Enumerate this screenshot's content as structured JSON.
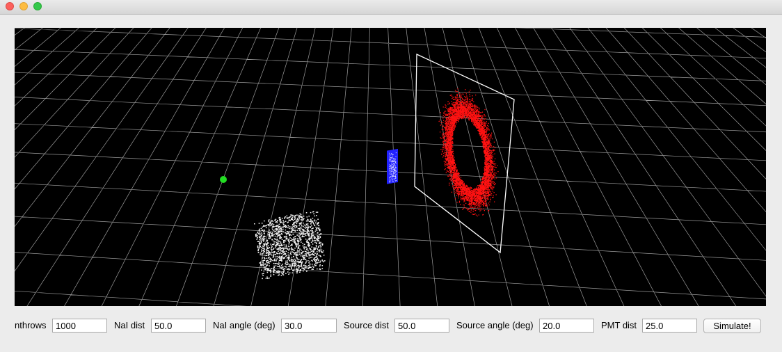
{
  "window": {
    "controls": {
      "close": "close-icon",
      "minimize": "minimize-icon",
      "zoom": "zoom-icon"
    }
  },
  "scene": {
    "background_color": "#000000",
    "grid_color": "#d0d0d0",
    "source_color": "#22dd22",
    "nai_detector_color": "#f0f0f0",
    "pmt_color": "#2222ff",
    "screen_frame_color": "#ffffff",
    "hits_color": "#ff1111"
  },
  "controls": {
    "nthrows": {
      "label": "nthrows",
      "value": "1000"
    },
    "nai_dist": {
      "label": "NaI dist",
      "value": "50.0"
    },
    "nai_angle": {
      "label": "NaI angle (deg)",
      "value": "30.0"
    },
    "source_dist": {
      "label": "Source dist",
      "value": "50.0"
    },
    "source_angle": {
      "label": "Source angle (deg)",
      "value": "20.0"
    },
    "pmt_dist": {
      "label": "PMT dist",
      "value": "25.0"
    },
    "simulate_label": "Simulate!"
  }
}
